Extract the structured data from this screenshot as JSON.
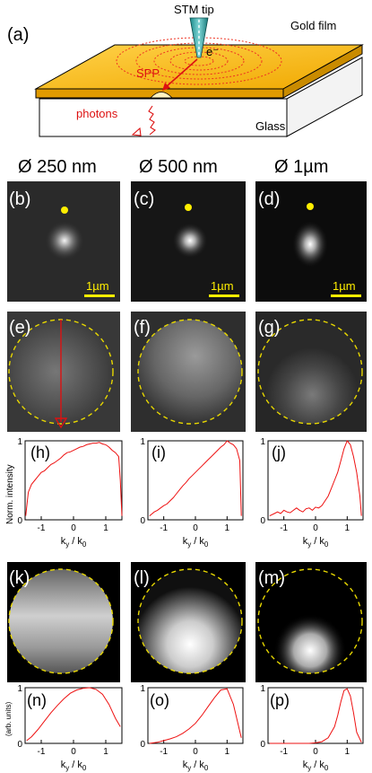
{
  "schematic": {
    "panel_label": "(a)",
    "stm_tip": "STM tip",
    "electron": "e⁻",
    "gold_film": "Gold film",
    "spp": "SPP",
    "photons": "photons",
    "glass": "Glass"
  },
  "columns": [
    "Ø 250 nm",
    "Ø 500 nm",
    "Ø 1µm"
  ],
  "scale_bar": "1µm",
  "panel_labels": {
    "real_space": [
      "(b)",
      "(c)",
      "(d)"
    ],
    "fourier_exp": [
      "(e)",
      "(f)",
      "(g)"
    ],
    "profiles_exp": [
      "(h)",
      "(i)",
      "(j)"
    ],
    "fourier_sim": [
      "(k)",
      "(l)",
      "(m)"
    ],
    "profiles_sim": [
      "(n)",
      "(o)",
      "(p)"
    ]
  },
  "ylabel_exp": "Norm. intensity",
  "ylabel_sim": "(arb. units)",
  "xlabel": "k_y / k_0",
  "colors": {
    "gold": "#f4b400",
    "marker": "#ffee00",
    "circle": "#e8d800",
    "curve": "#ee1111",
    "spp": "#ee2222"
  },
  "chart_data": [
    {
      "type": "line",
      "panel": "(h)",
      "xlabel": "ky / k0",
      "ylabel": "Norm. intensity",
      "xlim": [
        -1.5,
        1.5
      ],
      "ylim": [
        0,
        1
      ],
      "xticks": [
        "-1",
        "0",
        "1"
      ],
      "yticks": [
        "0",
        "1"
      ],
      "x": [
        -1.48,
        -1.4,
        -1.3,
        -1.2,
        -1.1,
        -1.0,
        -0.9,
        -0.8,
        -0.7,
        -0.6,
        -0.5,
        -0.4,
        -0.3,
        -0.2,
        -0.1,
        0.0,
        0.1,
        0.2,
        0.3,
        0.4,
        0.5,
        0.6,
        0.7,
        0.8,
        0.9,
        1.0,
        1.1,
        1.2,
        1.3,
        1.4,
        1.45,
        1.5
      ],
      "y": [
        0.05,
        0.35,
        0.45,
        0.5,
        0.55,
        0.6,
        0.62,
        0.66,
        0.7,
        0.72,
        0.75,
        0.78,
        0.82,
        0.85,
        0.86,
        0.88,
        0.9,
        0.92,
        0.93,
        0.95,
        0.96,
        0.97,
        0.97,
        0.98,
        0.96,
        0.95,
        0.92,
        0.88,
        0.85,
        0.8,
        0.5,
        0.05
      ]
    },
    {
      "type": "line",
      "panel": "(i)",
      "xlabel": "ky / k0",
      "ylabel": "",
      "xlim": [
        -1.5,
        1.5
      ],
      "ylim": [
        0,
        1
      ],
      "xticks": [
        "-1",
        "0",
        "1"
      ],
      "yticks": [
        "0",
        "1"
      ],
      "x": [
        -1.45,
        -1.3,
        -1.2,
        -1.1,
        -1.0,
        -0.9,
        -0.8,
        -0.7,
        -0.6,
        -0.5,
        -0.4,
        -0.3,
        -0.2,
        -0.1,
        0.0,
        0.1,
        0.2,
        0.3,
        0.4,
        0.5,
        0.6,
        0.7,
        0.8,
        0.9,
        1.0,
        1.1,
        1.2,
        1.3,
        1.4,
        1.45
      ],
      "y": [
        0.05,
        0.1,
        0.12,
        0.15,
        0.18,
        0.2,
        0.24,
        0.28,
        0.33,
        0.38,
        0.43,
        0.47,
        0.52,
        0.56,
        0.6,
        0.64,
        0.68,
        0.72,
        0.76,
        0.8,
        0.84,
        0.88,
        0.92,
        0.95,
        1.0,
        0.97,
        0.95,
        0.9,
        0.75,
        0.05
      ]
    },
    {
      "type": "line",
      "panel": "(j)",
      "xlabel": "ky / k0",
      "ylabel": "",
      "xlim": [
        -1.5,
        1.5
      ],
      "ylim": [
        0,
        1
      ],
      "xticks": [
        "-1",
        "0",
        "1"
      ],
      "yticks": [
        "0",
        "1"
      ],
      "x": [
        -1.45,
        -1.3,
        -1.2,
        -1.1,
        -1.0,
        -0.9,
        -0.8,
        -0.7,
        -0.6,
        -0.5,
        -0.4,
        -0.3,
        -0.2,
        -0.1,
        0.0,
        0.1,
        0.2,
        0.3,
        0.4,
        0.5,
        0.6,
        0.7,
        0.8,
        0.9,
        1.0,
        1.1,
        1.2,
        1.3,
        1.4,
        1.45
      ],
      "y": [
        0.05,
        0.08,
        0.1,
        0.08,
        0.12,
        0.1,
        0.09,
        0.12,
        0.15,
        0.12,
        0.1,
        0.14,
        0.15,
        0.12,
        0.16,
        0.15,
        0.18,
        0.24,
        0.3,
        0.4,
        0.5,
        0.6,
        0.75,
        0.9,
        1.0,
        0.95,
        0.8,
        0.6,
        0.3,
        0.05
      ]
    },
    {
      "type": "line",
      "panel": "(n)",
      "xlabel": "ky / k0",
      "ylabel": "(arb. units)",
      "xlim": [
        -1.5,
        1.5
      ],
      "ylim": [
        0,
        1
      ],
      "xticks": [
        "-1",
        "0",
        "1"
      ],
      "yticks": [
        "0",
        "1"
      ],
      "x": [
        -1.45,
        -1.3,
        -1.1,
        -0.9,
        -0.7,
        -0.5,
        -0.3,
        -0.1,
        0.1,
        0.3,
        0.5,
        0.7,
        0.9,
        1.1,
        1.3,
        1.45
      ],
      "y": [
        0.05,
        0.12,
        0.25,
        0.4,
        0.55,
        0.68,
        0.8,
        0.9,
        0.96,
        0.99,
        1.0,
        0.97,
        0.88,
        0.7,
        0.45,
        0.3
      ]
    },
    {
      "type": "line",
      "panel": "(o)",
      "xlabel": "ky / k0",
      "ylabel": "",
      "xlim": [
        -1.5,
        1.5
      ],
      "ylim": [
        0,
        1
      ],
      "xticks": [
        "-1",
        "0",
        "1"
      ],
      "yticks": [
        "0",
        "1"
      ],
      "x": [
        -1.45,
        -1.2,
        -1.0,
        -0.8,
        -0.6,
        -0.4,
        -0.2,
        0.0,
        0.2,
        0.4,
        0.6,
        0.8,
        1.0,
        1.2,
        1.45
      ],
      "y": [
        0.0,
        0.02,
        0.05,
        0.08,
        0.12,
        0.18,
        0.26,
        0.36,
        0.5,
        0.66,
        0.82,
        0.96,
        0.98,
        0.7,
        0.1
      ]
    },
    {
      "type": "line",
      "panel": "(p)",
      "xlabel": "ky / k0",
      "ylabel": "",
      "xlim": [
        -1.5,
        1.5
      ],
      "ylim": [
        0,
        1
      ],
      "xticks": [
        "-1",
        "0",
        "1"
      ],
      "yticks": [
        "0",
        "1"
      ],
      "x": [
        -1.45,
        -1.0,
        -0.5,
        -0.2,
        0.0,
        0.2,
        0.4,
        0.6,
        0.7,
        0.8,
        0.9,
        1.0,
        1.1,
        1.2,
        1.3,
        1.45
      ],
      "y": [
        0.0,
        0.0,
        0.0,
        0.0,
        0.01,
        0.03,
        0.1,
        0.3,
        0.5,
        0.75,
        0.95,
        0.98,
        0.85,
        0.55,
        0.2,
        0.02
      ]
    }
  ]
}
